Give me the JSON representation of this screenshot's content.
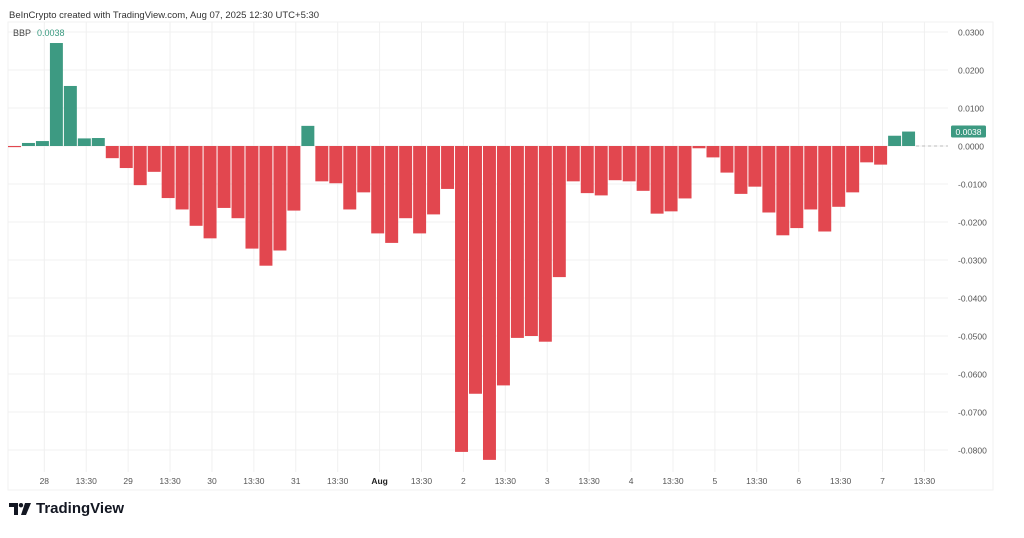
{
  "header": {
    "attribution": "BeInCrypto created with TradingView.com, Aug 07, 2025 12:30 UTC+5:30"
  },
  "legend": {
    "name": "BBP",
    "value": "0.0038"
  },
  "logo": {
    "text": "TradingView"
  },
  "colors": {
    "positive": "#3d9a82",
    "negative": "#e2474f",
    "grid": "#f0f0f0",
    "axis_text": "#555555"
  },
  "chart_data": {
    "type": "bar",
    "title": "BBP",
    "ylabel": "",
    "xlabel": "",
    "ylim": [
      -0.085,
      0.031
    ],
    "y_ticks": [
      "0.0300",
      "0.0200",
      "0.0100",
      "0.0000",
      "-0.0100",
      "-0.0200",
      "-0.0300",
      "-0.0400",
      "-0.0500",
      "-0.0600",
      "-0.0700",
      "-0.0800"
    ],
    "y_tick_values": [
      0.03,
      0.02,
      0.01,
      0,
      -0.01,
      -0.02,
      -0.03,
      -0.04,
      -0.05,
      -0.06,
      -0.07,
      -0.08
    ],
    "x_ticks": [
      "28",
      "13:30",
      "29",
      "13:30",
      "30",
      "13:30",
      "31",
      "13:30",
      "Aug",
      "13:30",
      "2",
      "13:30",
      "3",
      "13:30",
      "4",
      "13:30",
      "5",
      "13:30",
      "6",
      "13:30",
      "7",
      "13:30"
    ],
    "x_tick_bar_index": [
      2.6,
      5.6,
      8.6,
      11.6,
      14.6,
      17.6,
      20.6,
      23.6,
      26.6,
      29.6,
      32.6,
      35.6,
      38.6,
      41.6,
      44.6,
      47.6,
      50.6,
      53.6,
      56.6,
      59.6,
      62.6,
      65.6
    ],
    "last_value_label": "0.0038",
    "values": [
      -0.0003,
      0.0008,
      0.0013,
      0.0271,
      0.0158,
      0.002,
      0.0021,
      -0.0032,
      -0.0058,
      -0.0103,
      -0.0068,
      -0.0137,
      -0.0167,
      -0.021,
      -0.0243,
      -0.0163,
      -0.019,
      -0.027,
      -0.0315,
      -0.0275,
      -0.017,
      0.0053,
      -0.0093,
      -0.0098,
      -0.0167,
      -0.0122,
      -0.023,
      -0.0255,
      -0.019,
      -0.023,
      -0.018,
      -0.0113,
      -0.0805,
      -0.0652,
      -0.0826,
      -0.063,
      -0.0505,
      -0.05,
      -0.0515,
      -0.0345,
      -0.0093,
      -0.0124,
      -0.013,
      -0.009,
      -0.0093,
      -0.0118,
      -0.0178,
      -0.0172,
      -0.0138,
      -0.0006,
      -0.003,
      -0.007,
      -0.0126,
      -0.0107,
      -0.0175,
      -0.0235,
      -0.0216,
      -0.0167,
      -0.0225,
      -0.016,
      -0.0122,
      -0.0043,
      -0.0049,
      0.0027,
      0.0038
    ],
    "legend": [
      "BBP"
    ],
    "grid": true
  }
}
